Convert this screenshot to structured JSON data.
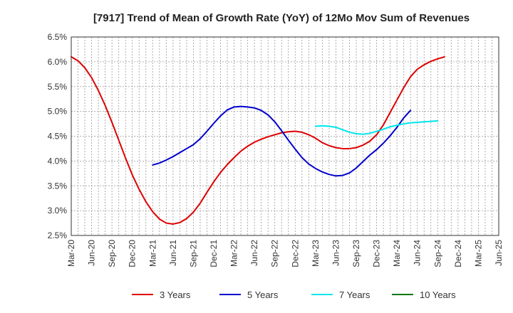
{
  "chart_data": {
    "type": "line",
    "title": "[7917]  Trend of Mean of Growth Rate (YoY) of 12Mo Mov Sum of Revenues",
    "xlabel": "",
    "ylabel": "",
    "ylim": [
      2.5,
      6.5
    ],
    "y_ticks": [
      2.5,
      3.0,
      3.5,
      4.0,
      4.5,
      5.0,
      5.5,
      6.0,
      6.5
    ],
    "y_tick_labels": [
      "2.5%",
      "3.0%",
      "3.5%",
      "4.0%",
      "4.5%",
      "5.0%",
      "5.5%",
      "6.0%",
      "6.5%"
    ],
    "x_tick_labels": [
      "Mar-20",
      "Jun-20",
      "Sep-20",
      "Dec-20",
      "Mar-21",
      "Jun-21",
      "Sep-21",
      "Dec-21",
      "Mar-22",
      "Jun-22",
      "Sep-22",
      "Dec-22",
      "Mar-23",
      "Jun-23",
      "Sep-23",
      "Dec-23",
      "Mar-24",
      "Jun-24",
      "Sep-24",
      "Dec-24",
      "Mar-25",
      "Jun-25"
    ],
    "months_total": 63,
    "grid": true,
    "legend_position": "bottom",
    "series": [
      {
        "name": "3 Years",
        "color": "#dd0000",
        "start_month": 0,
        "values": [
          6.1,
          6.02,
          5.88,
          5.68,
          5.42,
          5.12,
          4.78,
          4.42,
          4.06,
          3.72,
          3.43,
          3.18,
          2.98,
          2.83,
          2.75,
          2.73,
          2.76,
          2.84,
          2.97,
          3.15,
          3.37,
          3.58,
          3.77,
          3.93,
          4.07,
          4.2,
          4.3,
          4.38,
          4.44,
          4.49,
          4.53,
          4.57,
          4.59,
          4.6,
          4.58,
          4.53,
          4.46,
          4.37,
          4.31,
          4.27,
          4.25,
          4.25,
          4.27,
          4.32,
          4.4,
          4.53,
          4.73,
          4.98,
          5.23,
          5.48,
          5.7,
          5.85,
          5.94,
          6.01,
          6.06,
          6.1
        ]
      },
      {
        "name": "5 Years",
        "color": "#0000cc",
        "start_month": 12,
        "values": [
          3.92,
          3.96,
          4.02,
          4.09,
          4.17,
          4.25,
          4.33,
          4.45,
          4.6,
          4.76,
          4.91,
          5.03,
          5.09,
          5.1,
          5.09,
          5.07,
          5.02,
          4.93,
          4.79,
          4.61,
          4.42,
          4.24,
          4.07,
          3.94,
          3.85,
          3.78,
          3.73,
          3.7,
          3.71,
          3.76,
          3.86,
          3.99,
          4.12,
          4.23,
          4.36,
          4.51,
          4.68,
          4.87,
          5.02
        ]
      },
      {
        "name": "7 Years",
        "color": "#00e5ee",
        "start_month": 36,
        "values": [
          4.7,
          4.71,
          4.7,
          4.68,
          4.63,
          4.58,
          4.55,
          4.54,
          4.56,
          4.6,
          4.64,
          4.69,
          4.72,
          4.75,
          4.77,
          4.78,
          4.79,
          4.8,
          4.81
        ]
      },
      {
        "name": "10 Years",
        "color": "#007700",
        "start_month": 0,
        "values": []
      }
    ]
  }
}
